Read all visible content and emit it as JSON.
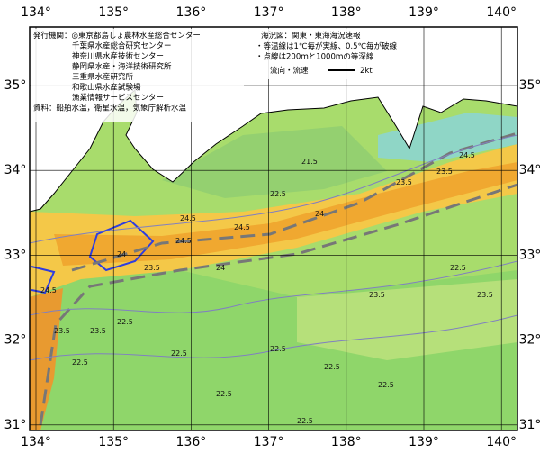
{
  "map": {
    "title": "海況図：関東・東海海況速報",
    "notes": [
      "・等温線は1℃毎が実線、0.5℃毎が破線",
      "・点線は200ｍと1000ｍの等深線"
    ],
    "current_legend": {
      "label": "流向・流速",
      "speed": "2kt"
    },
    "publishers": [
      "発行機関：◎東京都島しょ農林水産総合センター",
      "千葉県水産総合研究センター",
      "神奈川県水産技術センター",
      "静岡県水産・海洋技術研究所",
      "三重県水産研究所",
      "和歌山県水産試験場",
      "漁業情報サービスセンター"
    ],
    "sources": "資料：船舶水温，衛星水温，気象庁解析水温",
    "lon_ticks": [
      {
        "value": 134,
        "label": "134°"
      },
      {
        "value": 135,
        "label": "135°"
      },
      {
        "value": 136,
        "label": "136°"
      },
      {
        "value": 137,
        "label": "137°"
      },
      {
        "value": 138,
        "label": "138°"
      },
      {
        "value": 139,
        "label": "139°"
      },
      {
        "value": 140,
        "label": "140°"
      }
    ],
    "lat_ticks": [
      {
        "value": 35,
        "label": "35°"
      },
      {
        "value": 34,
        "label": "34°"
      },
      {
        "value": 33,
        "label": "33°"
      },
      {
        "value": 32,
        "label": "32°"
      },
      {
        "value": 31,
        "label": "31°"
      }
    ],
    "isotherm_labels": [
      "21.5",
      "22.5",
      "23.5",
      "24.5",
      "23.5",
      "24",
      "24.5",
      "24.5",
      "24",
      "23.5",
      "22.5",
      "22.5",
      "22.5",
      "22.5",
      "22.5",
      "23.5",
      "22.5",
      "22.5",
      "23.5",
      "24.5",
      "23.5",
      "22.5",
      "24.5",
      "23.5",
      "24",
      "22.5"
    ]
  }
}
